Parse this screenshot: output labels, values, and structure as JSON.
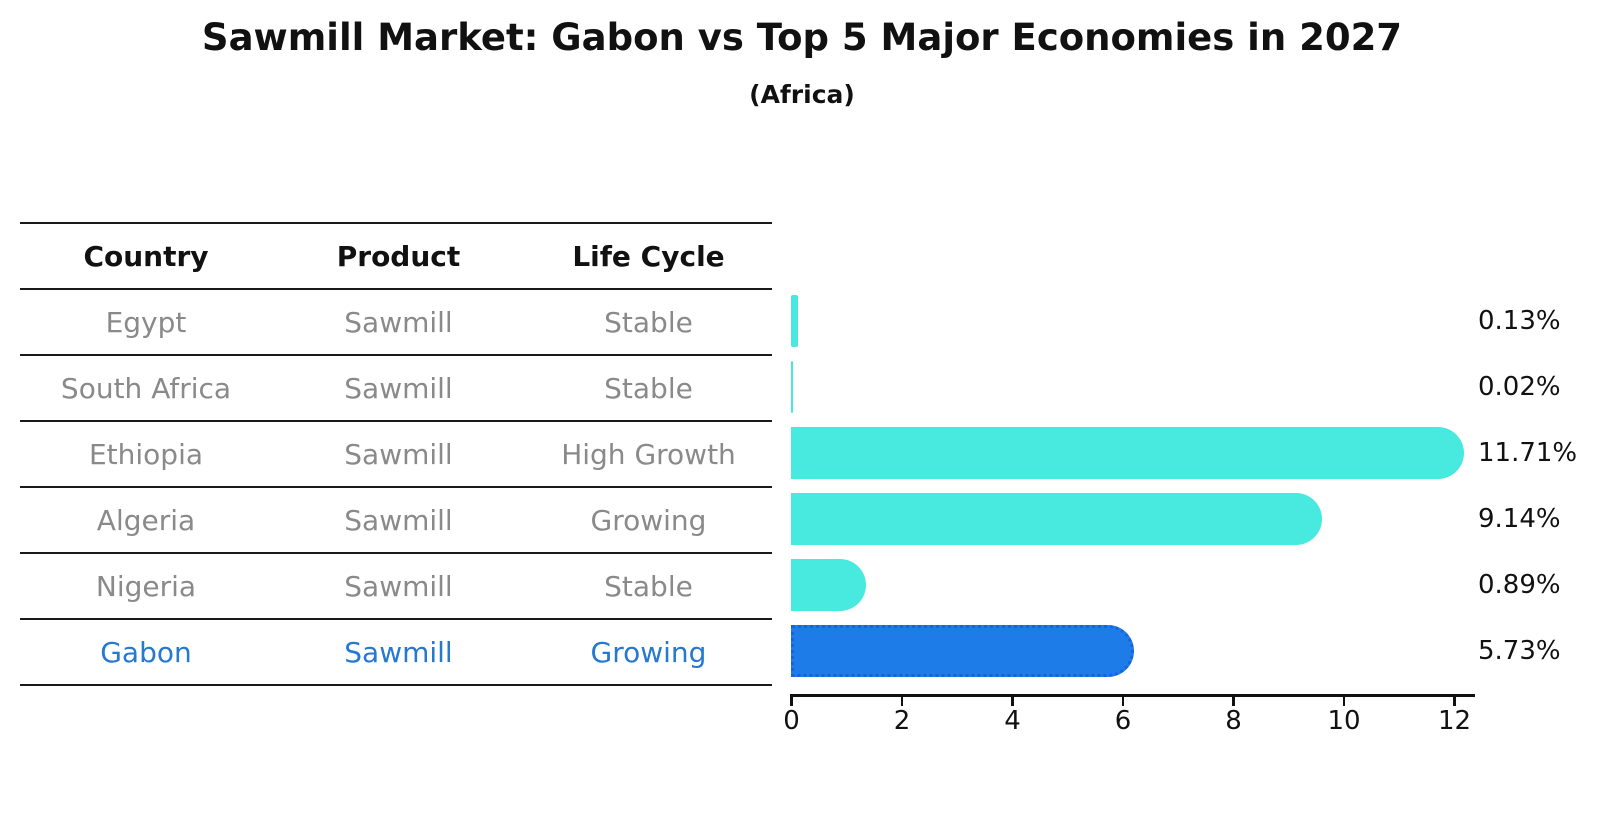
{
  "title": "Sawmill Market: Gabon vs Top 5 Major Economies in 2027",
  "subtitle": "(Africa)",
  "table": {
    "headers": [
      "Country",
      "Product",
      "Life Cycle"
    ],
    "rows": [
      {
        "country": "Egypt",
        "product": "Sawmill",
        "life_cycle": "Stable",
        "highlight": false
      },
      {
        "country": "South Africa",
        "product": "Sawmill",
        "life_cycle": "Stable",
        "highlight": false
      },
      {
        "country": "Ethiopia",
        "product": "Sawmill",
        "life_cycle": "High Growth",
        "highlight": false
      },
      {
        "country": "Algeria",
        "product": "Sawmill",
        "life_cycle": "Growing",
        "highlight": false
      },
      {
        "country": "Nigeria",
        "product": "Sawmill",
        "life_cycle": "Stable",
        "highlight": false
      },
      {
        "country": "Gabon",
        "product": "Sawmill",
        "life_cycle": "Growing",
        "highlight": true
      }
    ]
  },
  "chart_data": {
    "type": "bar",
    "orientation": "horizontal",
    "categories": [
      "Egypt",
      "South Africa",
      "Ethiopia",
      "Algeria",
      "Nigeria",
      "Gabon"
    ],
    "values": [
      0.13,
      0.02,
      11.71,
      9.14,
      0.89,
      5.73
    ],
    "value_labels": [
      "0.13%",
      "0.02%",
      "11.71%",
      "9.14%",
      "0.89%",
      "5.73%"
    ],
    "highlight_index": 5,
    "x_ticks": [
      0,
      2,
      4,
      6,
      8,
      10,
      12
    ],
    "xlim": [
      0,
      12.4
    ],
    "grid": false,
    "legend": false,
    "bar_color": "#48e9df",
    "highlight_bar_color": "#1e7ce8",
    "highlight_text_color": "#2678d0"
  }
}
